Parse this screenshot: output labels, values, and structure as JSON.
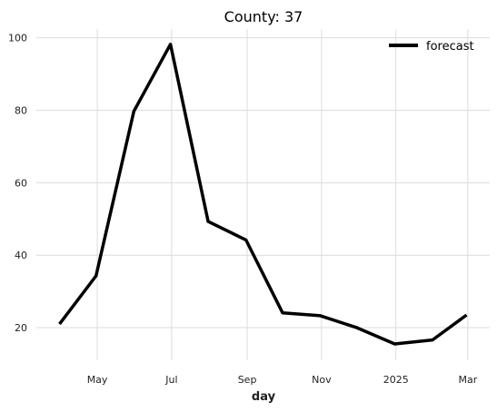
{
  "chart_data": {
    "type": "line",
    "title": "County: 37",
    "xlabel": "day",
    "ylabel": "",
    "x": [
      "2024-03-31",
      "2024-04-30",
      "2024-05-31",
      "2024-06-30",
      "2024-07-31",
      "2024-08-31",
      "2024-09-30",
      "2024-10-31",
      "2024-11-30",
      "2024-12-31",
      "2025-01-31",
      "2025-02-28"
    ],
    "series": [
      {
        "name": "forecast",
        "color": "#000000",
        "values": [
          21.0,
          34.3,
          79.7,
          98.2,
          49.3,
          44.2,
          24.1,
          23.3,
          20.0,
          15.5,
          16.6,
          23.5
        ]
      }
    ],
    "x_ticks": [
      {
        "date": "2024-05-01",
        "label": "May"
      },
      {
        "date": "2024-07-01",
        "label": "Jul"
      },
      {
        "date": "2024-09-01",
        "label": "Sep"
      },
      {
        "date": "2024-11-01",
        "label": "Nov"
      },
      {
        "date": "2025-01-01",
        "label": "2025"
      },
      {
        "date": "2025-03-01",
        "label": "Mar"
      }
    ],
    "xlim": [
      "2024-03-12",
      "2025-03-19"
    ],
    "y_ticks": [
      20,
      40,
      60,
      80,
      100
    ],
    "ylim": [
      11.0,
      102.4
    ],
    "grid": true,
    "legend_position": "top-right"
  }
}
